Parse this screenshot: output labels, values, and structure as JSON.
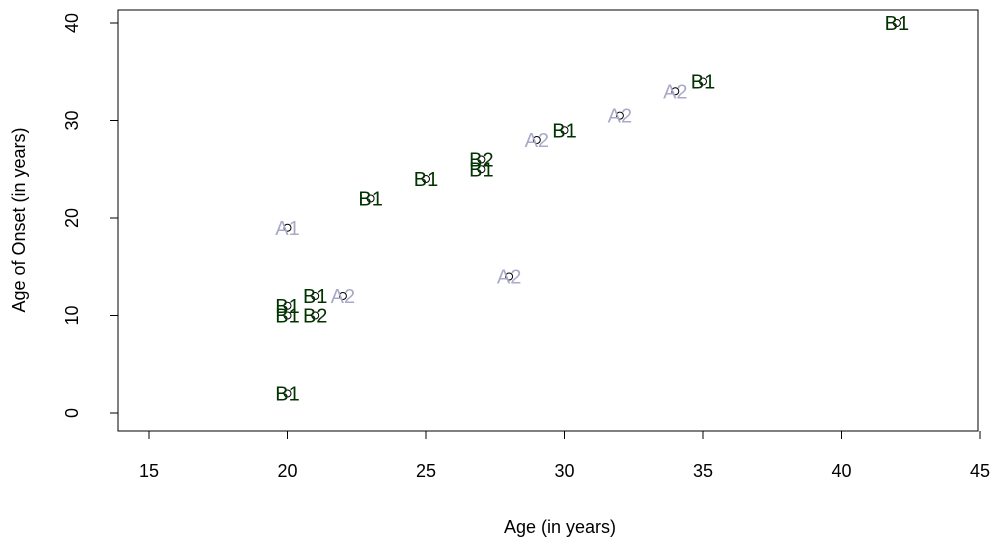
{
  "chart_data": {
    "type": "scatter",
    "title": "",
    "xlabel": "Age (in years)",
    "ylabel": "Age of Onset (in years)",
    "xlim": [
      15,
      45
    ],
    "ylim": [
      0,
      40
    ],
    "xticks": [
      15,
      20,
      25,
      30,
      35,
      40,
      45
    ],
    "yticks": [
      0,
      10,
      20,
      30,
      40
    ],
    "grid": false,
    "legend": "none",
    "colors": {
      "B": "#003300",
      "A": "#a9a9c8"
    },
    "points": [
      {
        "x": 20,
        "y": 2,
        "label": "B1",
        "group": "B"
      },
      {
        "x": 20,
        "y": 10,
        "label": "B1",
        "group": "B"
      },
      {
        "x": 20,
        "y": 11,
        "label": "B1",
        "group": "B"
      },
      {
        "x": 21,
        "y": 10,
        "label": "B2",
        "group": "B"
      },
      {
        "x": 21,
        "y": 12,
        "label": "B1",
        "group": "B"
      },
      {
        "x": 22,
        "y": 12,
        "label": "A2",
        "group": "A"
      },
      {
        "x": 20,
        "y": 19,
        "label": "A1",
        "group": "A"
      },
      {
        "x": 23,
        "y": 22,
        "label": "B1",
        "group": "B"
      },
      {
        "x": 25,
        "y": 24,
        "label": "B1",
        "group": "B"
      },
      {
        "x": 27,
        "y": 25,
        "label": "B1",
        "group": "B"
      },
      {
        "x": 27,
        "y": 26,
        "label": "B2",
        "group": "B"
      },
      {
        "x": 28,
        "y": 14,
        "label": "A2",
        "group": "A"
      },
      {
        "x": 29,
        "y": 28,
        "label": "A2",
        "group": "A"
      },
      {
        "x": 30,
        "y": 29,
        "label": "B1",
        "group": "B"
      },
      {
        "x": 32,
        "y": 30.5,
        "label": "A2",
        "group": "A"
      },
      {
        "x": 34,
        "y": 33,
        "label": "A2",
        "group": "A"
      },
      {
        "x": 35,
        "y": 34,
        "label": "B1",
        "group": "B"
      },
      {
        "x": 42,
        "y": 40,
        "label": "B1",
        "group": "B"
      }
    ]
  }
}
